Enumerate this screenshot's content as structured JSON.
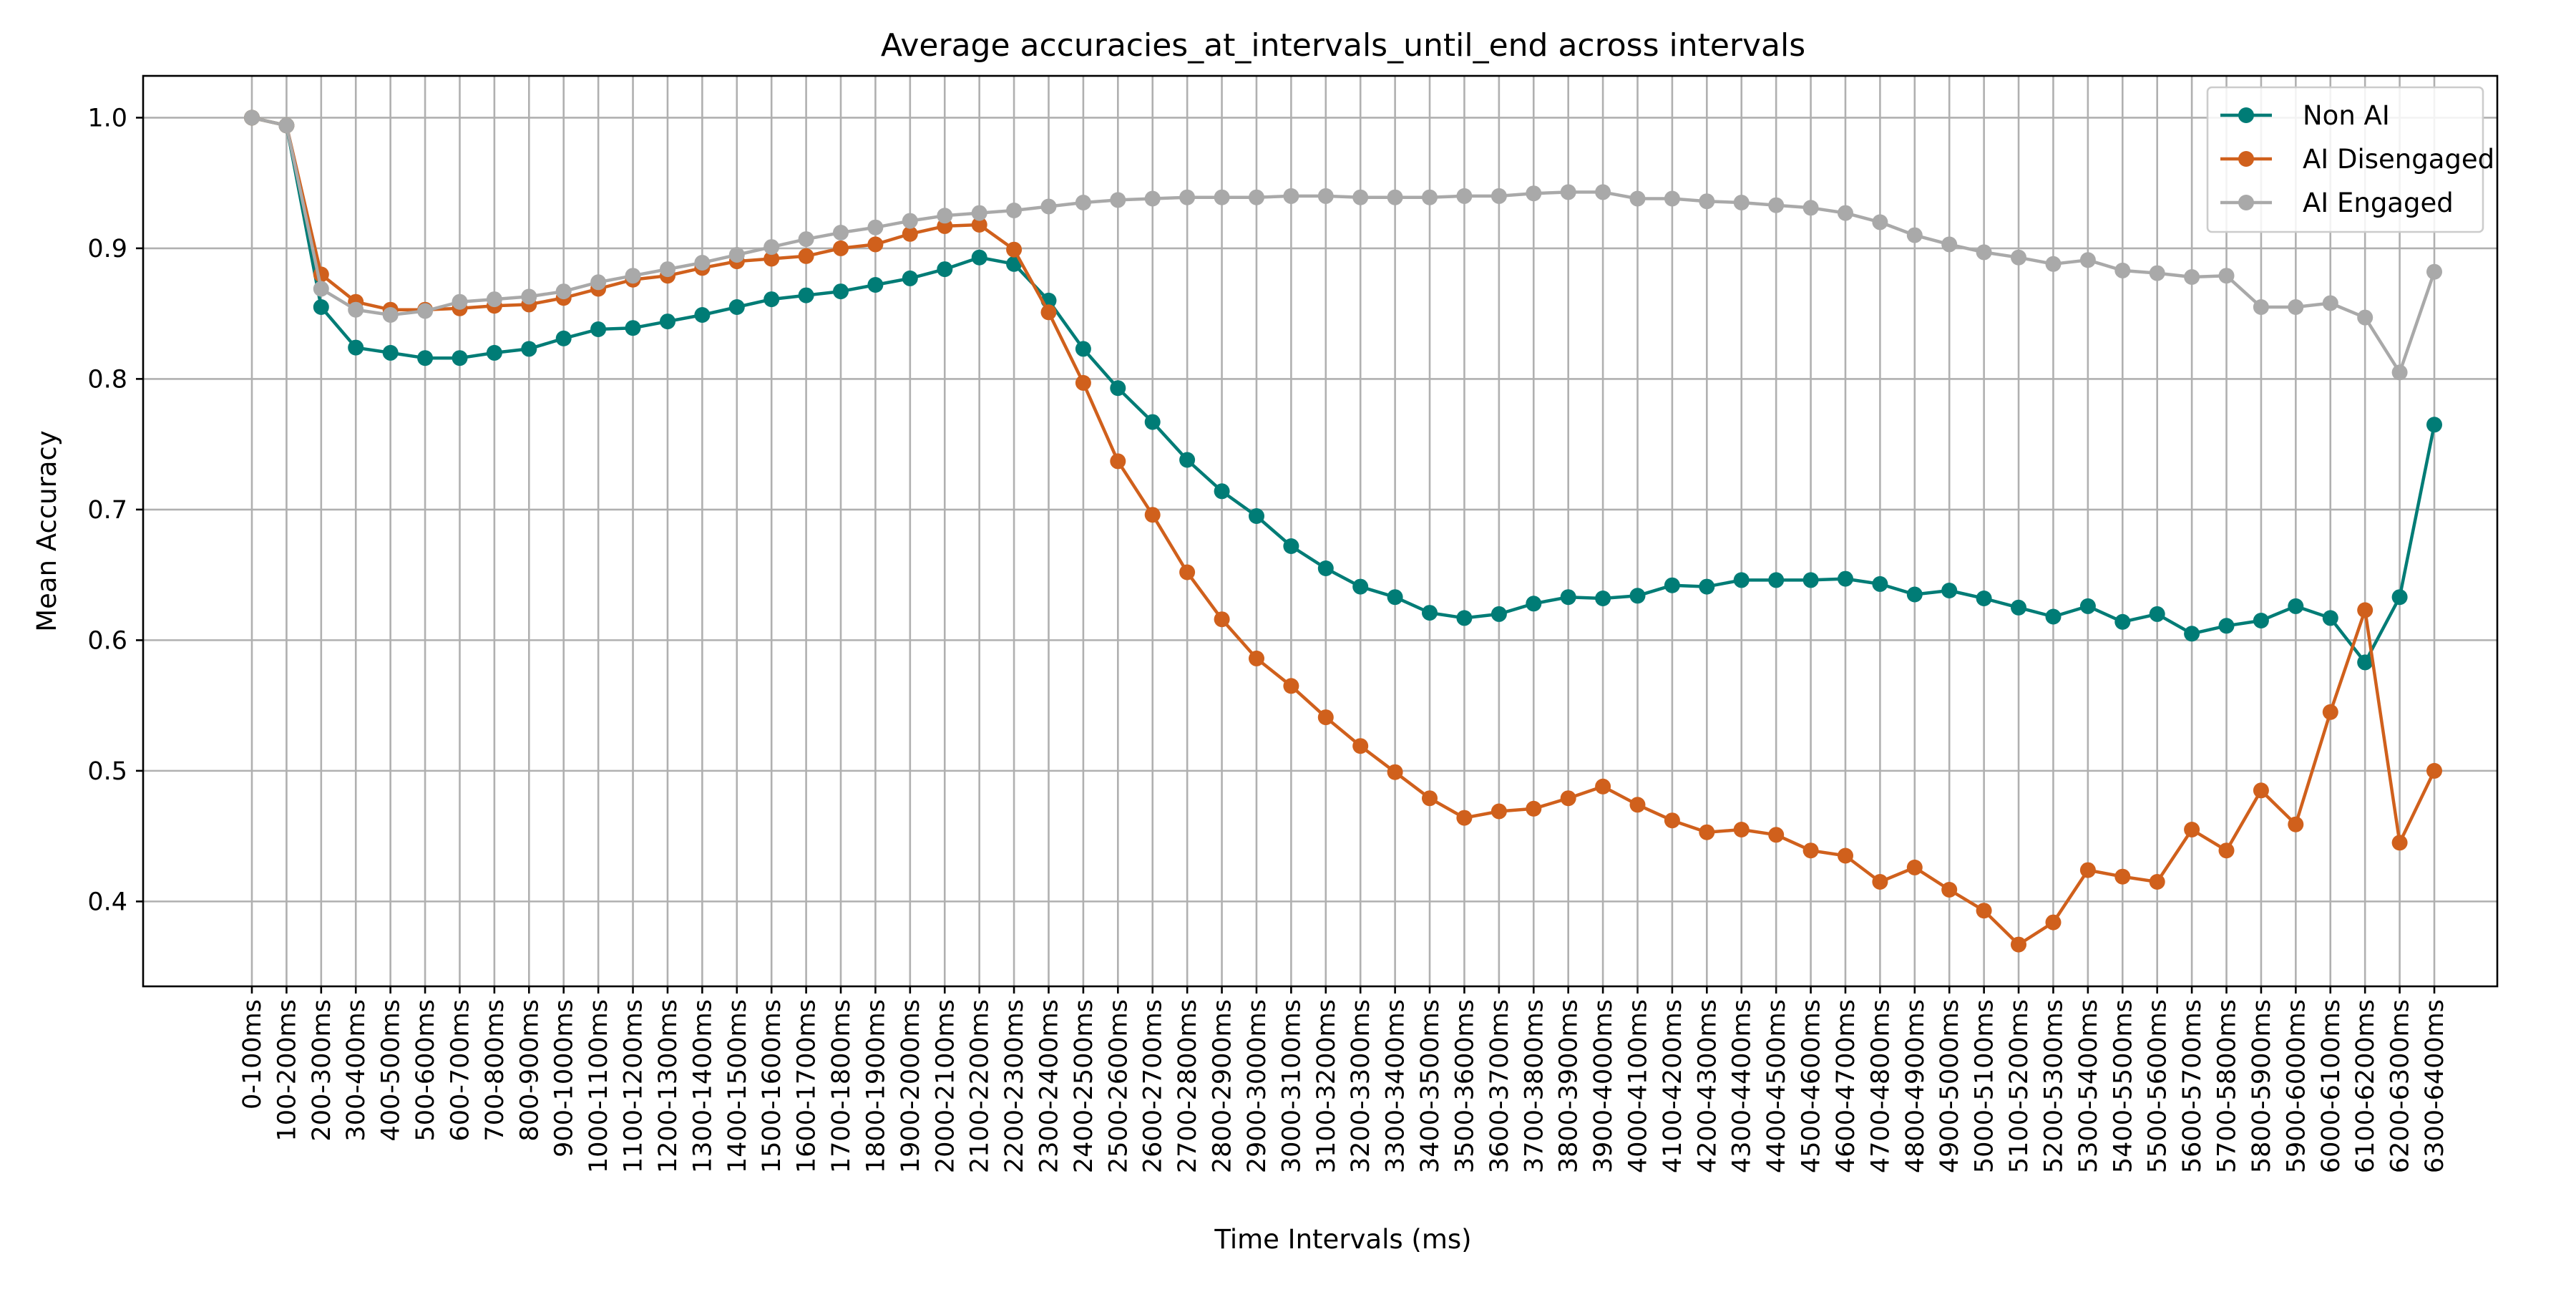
{
  "chart_data": {
    "type": "line",
    "title": "Average accuracies_at_intervals_until_end across intervals",
    "xlabel": "Time Intervals (ms)",
    "ylabel": "Mean Accuracy",
    "ylim": [
      0.335,
      1.032
    ],
    "yticks": [
      "0.4",
      "0.5",
      "0.6",
      "0.7",
      "0.8",
      "0.9",
      "1.0"
    ],
    "grid": true,
    "legend_position": "top-right",
    "markers": "circle",
    "categories": [
      "0-100ms",
      "100-200ms",
      "200-300ms",
      "300-400ms",
      "400-500ms",
      "500-600ms",
      "600-700ms",
      "700-800ms",
      "800-900ms",
      "900-1000ms",
      "1000-1100ms",
      "1100-1200ms",
      "1200-1300ms",
      "1300-1400ms",
      "1400-1500ms",
      "1500-1600ms",
      "1600-1700ms",
      "1700-1800ms",
      "1800-1900ms",
      "1900-2000ms",
      "2000-2100ms",
      "2100-2200ms",
      "2200-2300ms",
      "2300-2400ms",
      "2400-2500ms",
      "2500-2600ms",
      "2600-2700ms",
      "2700-2800ms",
      "2800-2900ms",
      "2900-3000ms",
      "3000-3100ms",
      "3100-3200ms",
      "3200-3300ms",
      "3300-3400ms",
      "3400-3500ms",
      "3500-3600ms",
      "3600-3700ms",
      "3700-3800ms",
      "3800-3900ms",
      "3900-4000ms",
      "4000-4100ms",
      "4100-4200ms",
      "4200-4300ms",
      "4300-4400ms",
      "4400-4500ms",
      "4500-4600ms",
      "4600-4700ms",
      "4700-4800ms",
      "4800-4900ms",
      "4900-5000ms",
      "5000-5100ms",
      "5100-5200ms",
      "5200-5300ms",
      "5300-5400ms",
      "5400-5500ms",
      "5500-5600ms",
      "5600-5700ms",
      "5700-5800ms",
      "5800-5900ms",
      "5900-6000ms",
      "6000-6100ms",
      "6100-6200ms",
      "6200-6300ms",
      "6300-6400ms"
    ],
    "series": [
      {
        "name": "Non AI",
        "color": "#007c76",
        "values": [
          1.0,
          0.994,
          0.855,
          0.824,
          0.82,
          0.816,
          0.816,
          0.82,
          0.823,
          0.831,
          0.838,
          0.839,
          0.844,
          0.849,
          0.855,
          0.861,
          0.864,
          0.867,
          0.872,
          0.877,
          0.884,
          0.893,
          0.888,
          0.86,
          0.823,
          0.793,
          0.767,
          0.738,
          0.714,
          0.695,
          0.672,
          0.655,
          0.641,
          0.633,
          0.621,
          0.617,
          0.62,
          0.628,
          0.633,
          0.632,
          0.634,
          0.642,
          0.641,
          0.646,
          0.646,
          0.646,
          0.647,
          0.643,
          0.635,
          0.638,
          0.632,
          0.625,
          0.618,
          0.626,
          0.614,
          0.62,
          0.605,
          0.611,
          0.615,
          0.626,
          0.617,
          0.583,
          0.633,
          0.765
        ]
      },
      {
        "name": "AI Disengaged",
        "color": "#d0601c",
        "values": [
          1.0,
          0.994,
          0.88,
          0.859,
          0.853,
          0.853,
          0.854,
          0.856,
          0.857,
          0.862,
          0.869,
          0.876,
          0.879,
          0.885,
          0.89,
          0.892,
          0.894,
          0.9,
          0.903,
          0.911,
          0.917,
          0.918,
          0.899,
          0.851,
          0.797,
          0.737,
          0.696,
          0.652,
          0.616,
          0.586,
          0.565,
          0.541,
          0.519,
          0.499,
          0.479,
          0.464,
          0.469,
          0.471,
          0.479,
          0.488,
          0.474,
          0.462,
          0.453,
          0.455,
          0.451,
          0.439,
          0.435,
          0.415,
          0.426,
          0.409,
          0.393,
          0.367,
          0.384,
          0.424,
          0.419,
          0.415,
          0.455,
          0.439,
          0.485,
          0.459,
          0.545,
          0.623,
          0.445,
          0.5
        ]
      },
      {
        "name": "AI Engaged",
        "color": "#a9a9a9",
        "values": [
          1.0,
          0.994,
          0.869,
          0.853,
          0.849,
          0.852,
          0.859,
          0.861,
          0.863,
          0.867,
          0.874,
          0.879,
          0.884,
          0.889,
          0.895,
          0.901,
          0.907,
          0.912,
          0.916,
          0.921,
          0.925,
          0.927,
          0.929,
          0.932,
          0.935,
          0.937,
          0.938,
          0.939,
          0.939,
          0.939,
          0.94,
          0.94,
          0.939,
          0.939,
          0.939,
          0.94,
          0.94,
          0.942,
          0.943,
          0.943,
          0.938,
          0.938,
          0.936,
          0.935,
          0.933,
          0.931,
          0.927,
          0.92,
          0.91,
          0.903,
          0.897,
          0.893,
          0.888,
          0.891,
          0.883,
          0.881,
          0.878,
          0.879,
          0.855,
          0.855,
          0.858,
          0.847,
          0.805,
          0.882
        ]
      }
    ]
  }
}
